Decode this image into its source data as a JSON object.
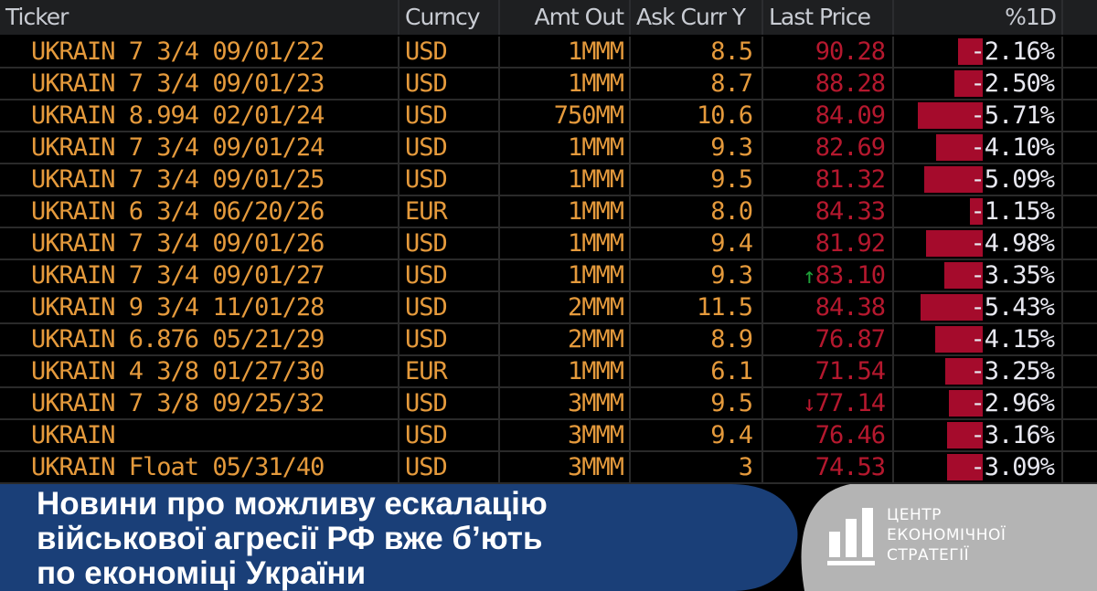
{
  "table": {
    "headers": [
      "Ticker",
      "Curncy",
      "Amt Out",
      "Ask Curr Y",
      "Last Price",
      "%1D"
    ],
    "rows": [
      {
        "ticker": "UKRAIN 7 3/4 09/01/22",
        "currency": "USD",
        "amt_out": "1MMM",
        "ask": "8.5",
        "last": "90.28",
        "pct": "-2.16%",
        "pct_value": -2.16
      },
      {
        "ticker": "UKRAIN 7 3/4 09/01/23",
        "currency": "USD",
        "amt_out": "1MMM",
        "ask": "8.7",
        "last": "88.28",
        "pct": "-2.50%",
        "pct_value": -2.5
      },
      {
        "ticker": "UKRAIN 8.994 02/01/24",
        "currency": "USD",
        "amt_out": "750MM",
        "ask": "10.6",
        "last": "84.09",
        "pct": "-5.71%",
        "pct_value": -5.71
      },
      {
        "ticker": "UKRAIN 7 3/4 09/01/24",
        "currency": "USD",
        "amt_out": "1MMM",
        "ask": "9.3",
        "last": "82.69",
        "pct": "-4.10%",
        "pct_value": -4.1
      },
      {
        "ticker": "UKRAIN 7 3/4 09/01/25",
        "currency": "USD",
        "amt_out": "1MMM",
        "ask": "9.5",
        "last": "81.32",
        "pct": "-5.09%",
        "pct_value": -5.09
      },
      {
        "ticker": "UKRAIN 6 3/4 06/20/26",
        "currency": "EUR",
        "amt_out": "1MMM",
        "ask": "8.0",
        "last": "84.33",
        "pct": "-1.15%",
        "pct_value": -1.15
      },
      {
        "ticker": "UKRAIN 7 3/4 09/01/26",
        "currency": "USD",
        "amt_out": "1MMM",
        "ask": "9.4",
        "last": "81.92",
        "pct": "-4.98%",
        "pct_value": -4.98
      },
      {
        "ticker": "UKRAIN 7 3/4 09/01/27",
        "currency": "USD",
        "amt_out": "1MMM",
        "ask": "9.3",
        "last": "83.10",
        "pct": "-3.35%",
        "pct_value": -3.35,
        "tick": "up"
      },
      {
        "ticker": "UKRAIN 9 3/4 11/01/28",
        "currency": "USD",
        "amt_out": "2MMM",
        "ask": "11.5",
        "last": "84.38",
        "pct": "-5.43%",
        "pct_value": -5.43
      },
      {
        "ticker": "UKRAIN 6.876 05/21/29",
        "currency": "USD",
        "amt_out": "2MMM",
        "ask": "8.9",
        "last": "76.87",
        "pct": "-4.15%",
        "pct_value": -4.15
      },
      {
        "ticker": "UKRAIN 4 3/8 01/27/30",
        "currency": "EUR",
        "amt_out": "1MMM",
        "ask": "6.1",
        "last": "71.54",
        "pct": "-3.25%",
        "pct_value": -3.25
      },
      {
        "ticker": "UKRAIN 7 3/8 09/25/32",
        "currency": "USD",
        "amt_out": "3MMM",
        "ask": "9.5",
        "last": "77.14",
        "pct": "-2.96%",
        "pct_value": -2.96,
        "tick": "down"
      },
      {
        "ticker": "UKRAIN",
        "currency": "USD",
        "amt_out": "3MMM",
        "ask": "9.4",
        "last": "76.46",
        "pct": "-3.16%",
        "pct_value": -3.16
      },
      {
        "ticker": "UKRAIN Float 05/31/40",
        "currency": "USD",
        "amt_out": "3MMM",
        "ask": "3",
        "last": "74.53",
        "pct": "-3.09%",
        "pct_value": -3.09
      }
    ]
  },
  "logo": {
    "line1": "ЦЕНТР",
    "line2": "ЕКОНОМІЧНОЇ",
    "line3": "СТРАТЕГІЇ"
  },
  "headline": {
    "line1": "Новини про можливу ескалацію",
    "line2": "військової агресії РФ вже б’ють",
    "line3": "по економіці України"
  },
  "colors": {
    "ticker": "#e59a3c",
    "price_down": "#b5182e",
    "bar": "#a50b2c",
    "overlay_blue": "#1a3f78",
    "overlay_gray": "#b4b4b4",
    "tick_up": "#1fa23a"
  },
  "icons": {
    "tick_up": "↑",
    "tick_down": "↓"
  }
}
